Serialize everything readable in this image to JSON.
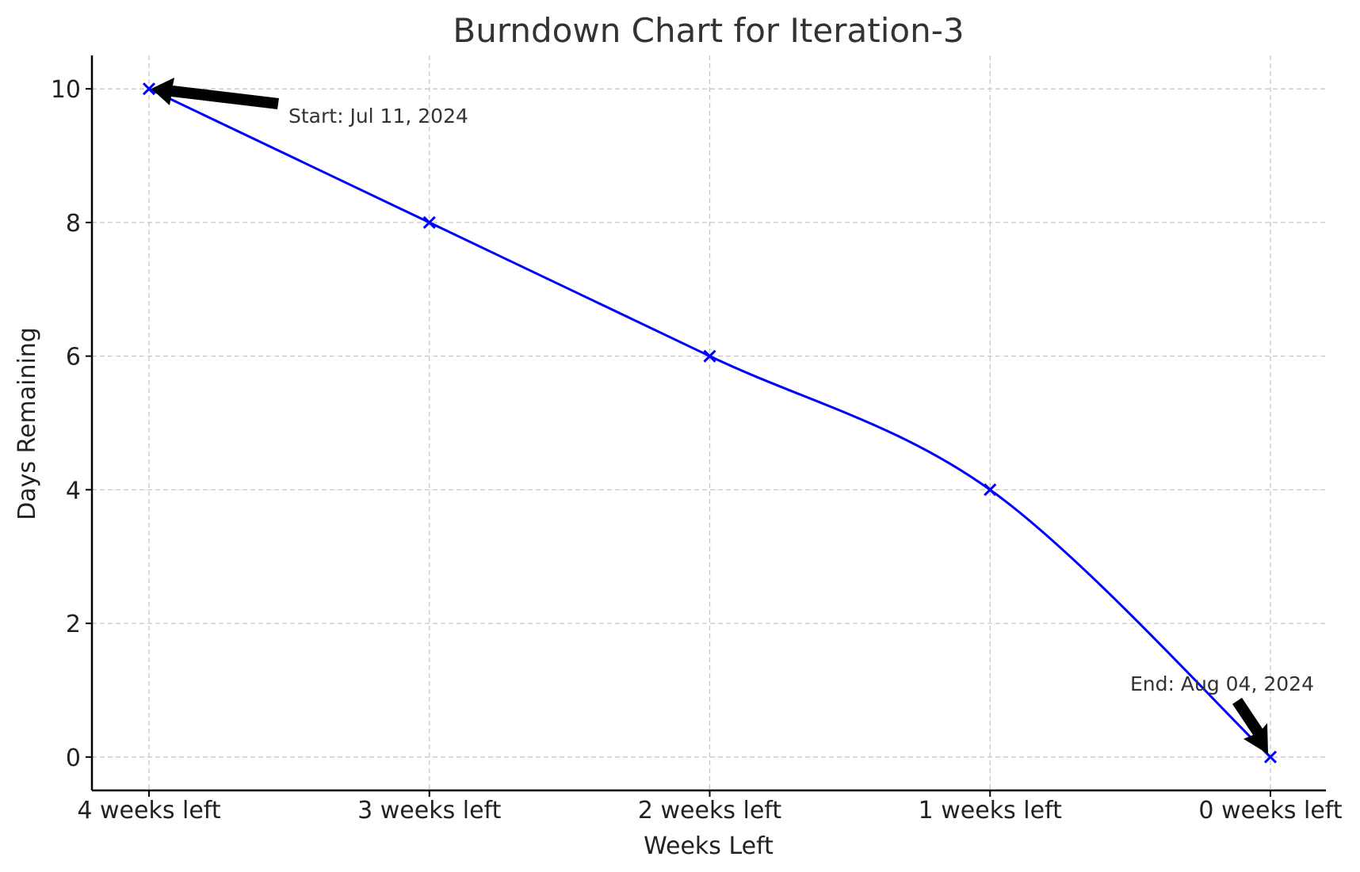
{
  "chart_data": {
    "type": "line",
    "title": "Burndown Chart for Iteration-3",
    "xlabel": "Weeks Left",
    "ylabel": "Days Remaining",
    "categories": [
      "4 weeks left",
      "3 weeks left",
      "2 weeks left",
      "1 weeks left",
      "0 weeks left"
    ],
    "series": [
      {
        "values": [
          10,
          8,
          6,
          4,
          0
        ],
        "color": "#0000ff",
        "marker": "x"
      }
    ],
    "ylim": [
      -0.5,
      10.5
    ],
    "yticks": [
      0,
      2,
      4,
      6,
      8,
      10
    ],
    "grid": true,
    "annotations": [
      {
        "text": "Start: Jul 11, 2024",
        "category_index": 0,
        "y": 10
      },
      {
        "text": "End: Aug 04, 2024",
        "category_index": 4,
        "y": 0
      }
    ]
  }
}
